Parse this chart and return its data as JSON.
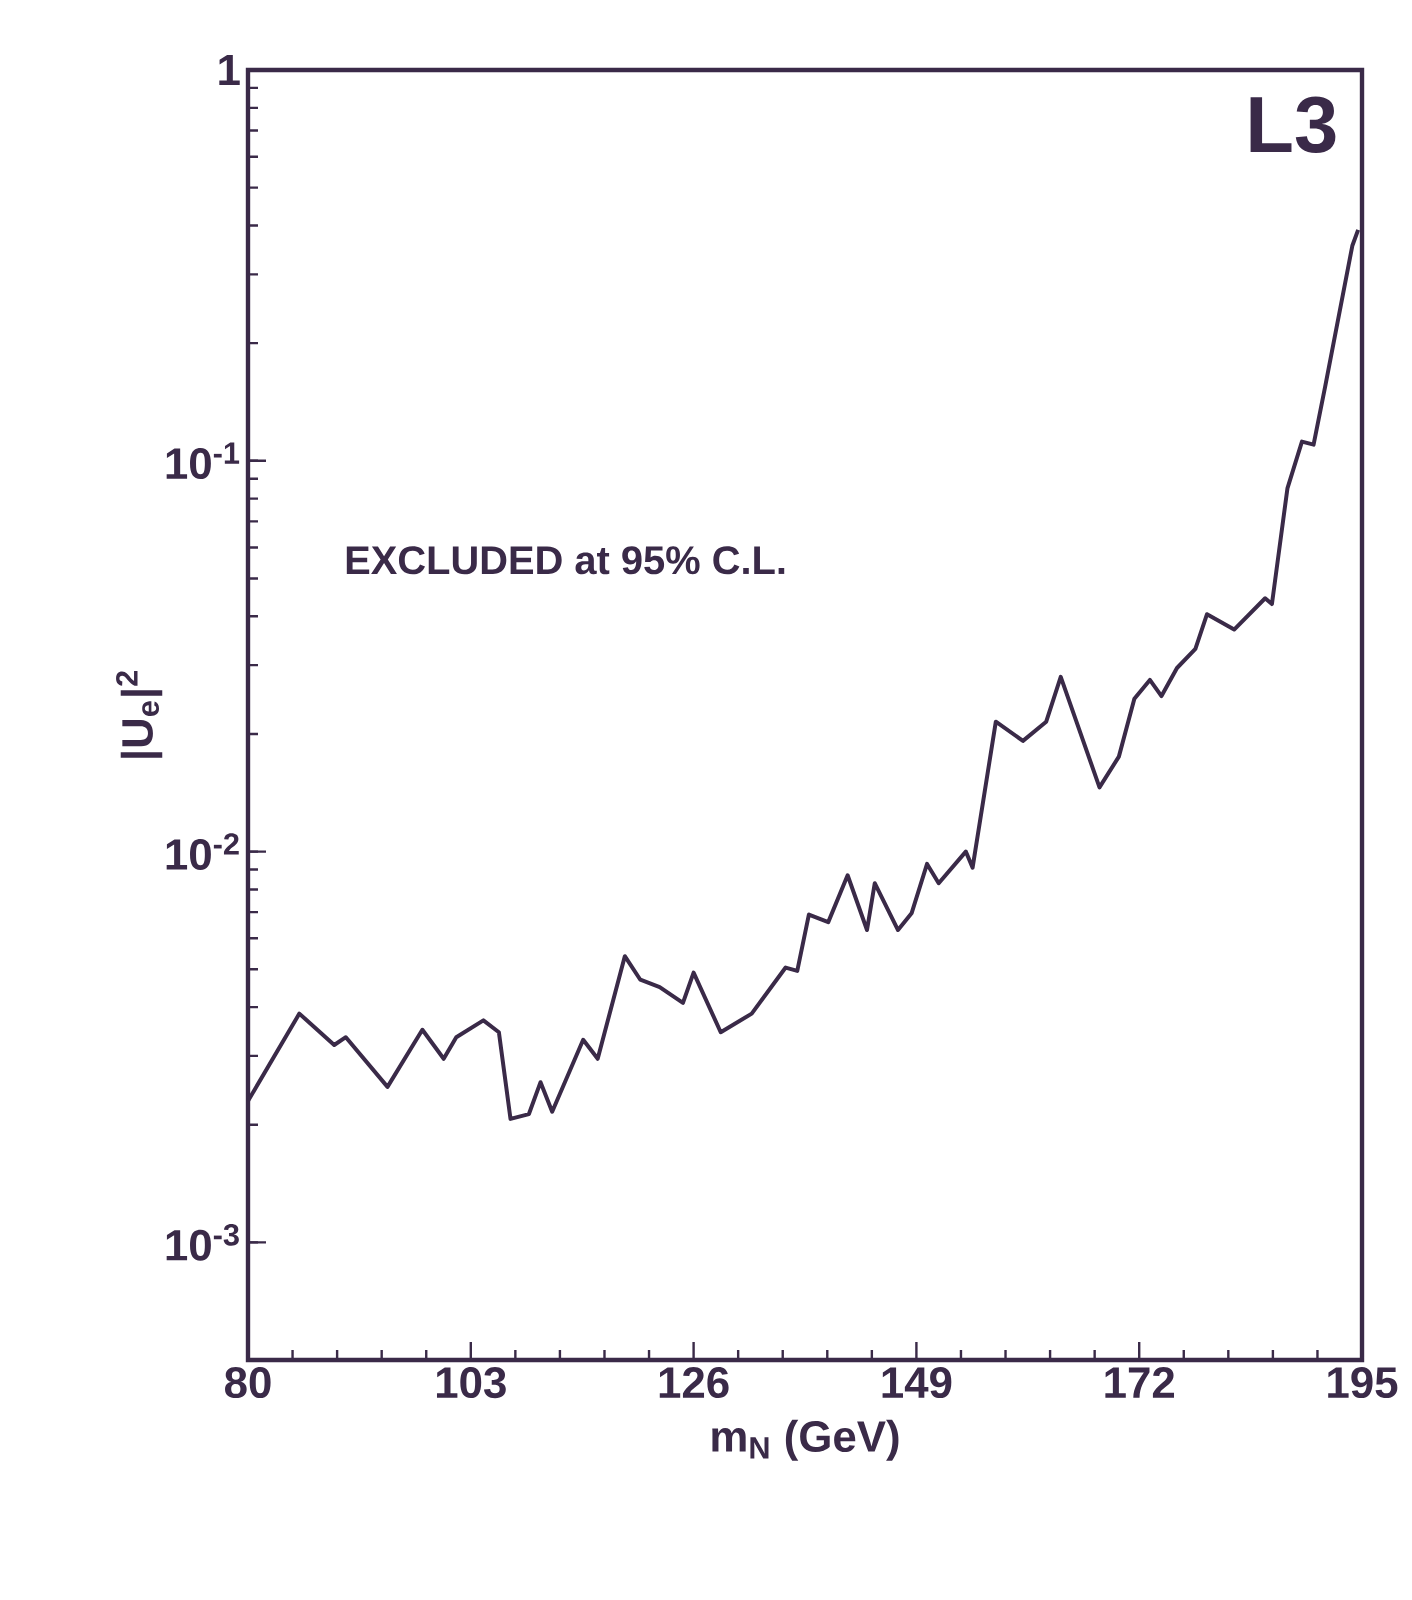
{
  "chart_data": {
    "type": "line",
    "xlabel": "m$_{N}$ (GeV)",
    "ylabel": "|U$_{e}$|$^{2}$",
    "annotations": [
      "L3",
      "EXCLUDED at 95% C.L."
    ],
    "log": "y",
    "grid": false,
    "marker": "none",
    "line_style": "solid",
    "xlim": [
      80,
      195
    ],
    "ylim": [
      0.0005,
      1
    ],
    "xticks": [
      80,
      103,
      126,
      149,
      172,
      195
    ],
    "yticks": [
      {
        "value": 0.001,
        "label": "10$^{-3}$"
      },
      {
        "value": 0.01,
        "label": "10$^{-2}$"
      },
      {
        "value": 0.1,
        "label": "10$^{-1}$"
      },
      1
    ],
    "x": [
      80,
      85.3,
      88.9,
      90.1,
      94.4,
      98.0,
      100.2,
      101.5,
      104.3,
      105.9,
      107.1,
      109.0,
      110.2,
      111.4,
      114.6,
      116.1,
      118.9,
      120.5,
      122.5,
      124.9,
      126.0,
      128.8,
      132.0,
      135.5,
      136.7,
      137.9,
      139.9,
      141.9,
      143.9,
      144.7,
      147.1,
      148.5,
      150.1,
      151.3,
      154.1,
      154.8,
      157.2,
      160.0,
      162.4,
      163.9,
      167.9,
      169.9,
      171.5,
      173.1,
      174.3,
      175.9,
      177.8,
      179.0,
      181.8,
      185.0,
      185.7,
      187.3,
      188.8,
      190.0,
      191.2,
      194.0,
      194.6
    ],
    "series": [
      {
        "color": "#3a2a48",
        "values": [
          0.0023,
          0.00385,
          0.0032,
          0.00335,
          0.0025,
          0.0035,
          0.00295,
          0.00335,
          0.0037,
          0.00345,
          0.00207,
          0.00213,
          0.00257,
          0.00216,
          0.0033,
          0.00295,
          0.0054,
          0.0047,
          0.0045,
          0.0041,
          0.0049,
          0.00345,
          0.00385,
          0.00505,
          0.00495,
          0.0069,
          0.0066,
          0.0087,
          0.0063,
          0.0083,
          0.0063,
          0.00695,
          0.0093,
          0.0083,
          0.01,
          0.0091,
          0.0215,
          0.0192,
          0.0215,
          0.028,
          0.0146,
          0.0175,
          0.0246,
          0.0275,
          0.025,
          0.0295,
          0.033,
          0.0405,
          0.037,
          0.0445,
          0.043,
          0.085,
          0.112,
          0.11,
          0.155,
          0.355,
          0.39
        ]
      }
    ]
  }
}
